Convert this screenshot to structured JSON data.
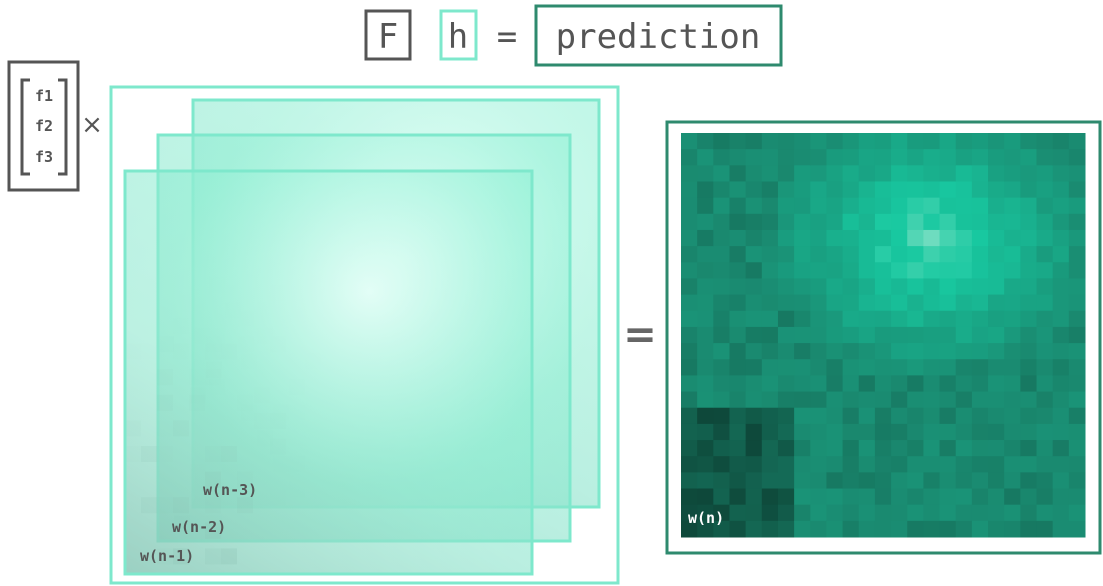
{
  "equation": {
    "operator": "F",
    "input": "h",
    "equals": "=",
    "result": "prediction"
  },
  "filter_vector": {
    "entries": [
      "f1",
      "f2",
      "f3"
    ],
    "times": "×"
  },
  "equals": "=",
  "frames": {
    "labels": [
      "w(n-3)",
      "w(n-2)",
      "w(n-1)"
    ]
  },
  "output": {
    "label": "w(n)"
  }
}
